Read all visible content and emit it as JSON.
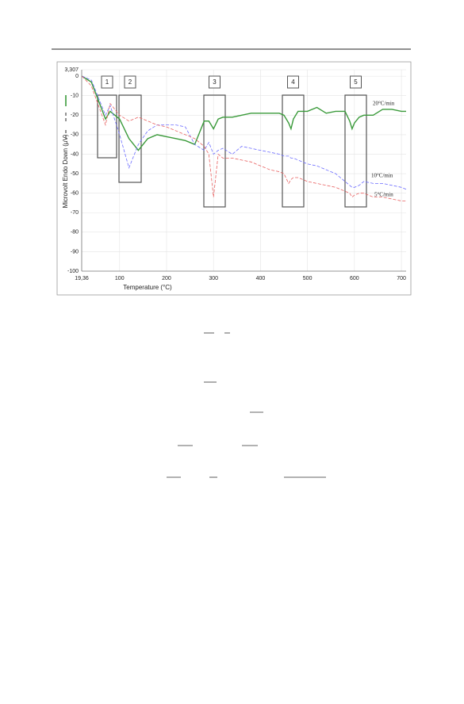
{
  "chart_data": {
    "type": "line",
    "xlabel": "Temperature (°C)",
    "ylabel": "Microvolt Endo Down (µV)",
    "xlim": [
      19.36,
      710
    ],
    "ylim": [
      -100,
      3.307
    ],
    "xticks": [
      {
        "value": 19.36,
        "label": "19,36"
      },
      100,
      200,
      300,
      400,
      500,
      600,
      700
    ],
    "yticks": [
      {
        "value": 3.307,
        "label": "3,307"
      },
      0,
      -10,
      -20,
      -30,
      -40,
      -50,
      -60,
      -70,
      -80,
      -90,
      -100
    ],
    "grid": true,
    "annotations": [
      "1",
      "2",
      "3",
      "4",
      "5"
    ],
    "x": [
      20,
      40,
      70,
      80,
      100,
      120,
      140,
      160,
      180,
      200,
      220,
      240,
      260,
      280,
      290,
      300,
      310,
      320,
      340,
      360,
      380,
      400,
      420,
      440,
      450,
      460,
      465,
      470,
      480,
      500,
      520,
      540,
      560,
      580,
      590,
      595,
      600,
      610,
      620,
      640,
      660,
      680,
      700,
      710
    ],
    "series": [
      {
        "name": "20°C/min",
        "color": "#3a9a3a",
        "dashed": false,
        "values": [
          0,
          -3,
          -22,
          -18,
          -22,
          -32,
          -38,
          -32,
          -30,
          -31,
          -32,
          -33,
          -35,
          -23,
          -23,
          -27,
          -22,
          -21,
          -21,
          -20,
          -19,
          -19,
          -19,
          -19,
          -20,
          -24,
          -27,
          -22,
          -18,
          -18,
          -16,
          -19,
          -18,
          -18,
          -23,
          -27,
          -24,
          -21,
          -20,
          -20,
          -17,
          -17,
          -18,
          -18
        ]
      },
      {
        "name": "10°C/min",
        "color": "#6b6bff",
        "dashed": true,
        "values": [
          0,
          -2,
          -20,
          -15,
          -30,
          -47,
          -35,
          -28,
          -25,
          -25,
          -25,
          -26,
          -35,
          -38,
          -34,
          -40,
          -38,
          -37,
          -40,
          -36,
          -37,
          -38,
          -39,
          -40,
          -41,
          -41,
          -42,
          -42,
          -43,
          -45,
          -46,
          -48,
          -50,
          -54,
          -56,
          -57,
          -57,
          -56,
          -54,
          -55,
          -55,
          -56,
          -57,
          -58
        ]
      },
      {
        "name": "5°C/min",
        "color": "#e86060",
        "dashed": true,
        "values": [
          0,
          -5,
          -25,
          -14,
          -20,
          -23,
          -21,
          -23,
          -25,
          -26,
          -28,
          -30,
          -32,
          -36,
          -40,
          -62,
          -40,
          -42,
          -42,
          -43,
          -44,
          -46,
          -48,
          -49,
          -50,
          -55,
          -53,
          -52,
          -52,
          -54,
          -55,
          -56,
          -57,
          -59,
          -60,
          -62,
          -61,
          -60,
          -60,
          -62,
          -62,
          -63,
          -64,
          -64
        ]
      }
    ]
  }
}
